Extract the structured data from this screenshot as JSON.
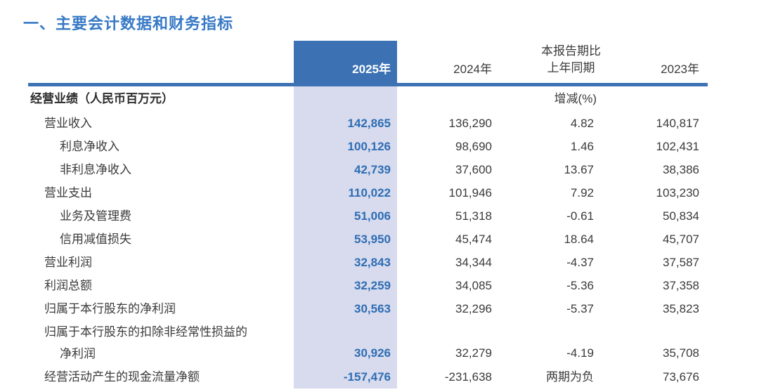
{
  "page": {
    "title": "一、主要会计数据和财务指标"
  },
  "colors": {
    "title_blue": "#3779c6",
    "header_block_blue": "#3c72b4",
    "highlight_column_bg": "#d7dbed",
    "value_blue": "#2e6db4",
    "body_text": "#3a3a3a"
  },
  "table": {
    "header": {
      "col_2025": "2025年",
      "col_2024": "2024年",
      "col_change_line1": "本报告期比",
      "col_change_line2": "上年同期",
      "col_2023": "2023年"
    },
    "subheader": {
      "label": "经营业绩（人民币百万元）",
      "change_label": "增减(%)"
    },
    "rows": [
      {
        "label": "营业收入",
        "indent": 1,
        "v2025": "142,865",
        "v2024": "136,290",
        "change": "4.82",
        "v2023": "140,817"
      },
      {
        "label": "利息净收入",
        "indent": 2,
        "v2025": "100,126",
        "v2024": "98,690",
        "change": "1.46",
        "v2023": "102,431"
      },
      {
        "label": "非利息净收入",
        "indent": 2,
        "v2025": "42,739",
        "v2024": "37,600",
        "change": "13.67",
        "v2023": "38,386"
      },
      {
        "label": "营业支出",
        "indent": 1,
        "v2025": "110,022",
        "v2024": "101,946",
        "change": "7.92",
        "v2023": "103,230"
      },
      {
        "label": "业务及管理费",
        "indent": 2,
        "v2025": "51,006",
        "v2024": "51,318",
        "change": "-0.61",
        "v2023": "50,834"
      },
      {
        "label": "信用减值损失",
        "indent": 2,
        "v2025": "53,950",
        "v2024": "45,474",
        "change": "18.64",
        "v2023": "45,707"
      },
      {
        "label": "营业利润",
        "indent": 1,
        "v2025": "32,843",
        "v2024": "34,344",
        "change": "-4.37",
        "v2023": "37,587"
      },
      {
        "label": "利润总额",
        "indent": 1,
        "v2025": "32,259",
        "v2024": "34,085",
        "change": "-5.36",
        "v2023": "37,358"
      },
      {
        "label": "归属于本行股东的净利润",
        "indent": 1,
        "v2025": "30,563",
        "v2024": "32,296",
        "change": "-5.37",
        "v2023": "35,823"
      },
      {
        "label": "归属于本行股东的扣除非经常性损益的",
        "label_line2": "净利润",
        "indent": 1,
        "v2025": "30,926",
        "v2024": "32,279",
        "change": "-4.19",
        "v2023": "35,708"
      },
      {
        "label": "经营活动产生的现金流量净额",
        "indent": 1,
        "v2025": "-157,476",
        "v2024": "-231,638",
        "change": "两期为负",
        "v2023": "73,676"
      }
    ]
  }
}
